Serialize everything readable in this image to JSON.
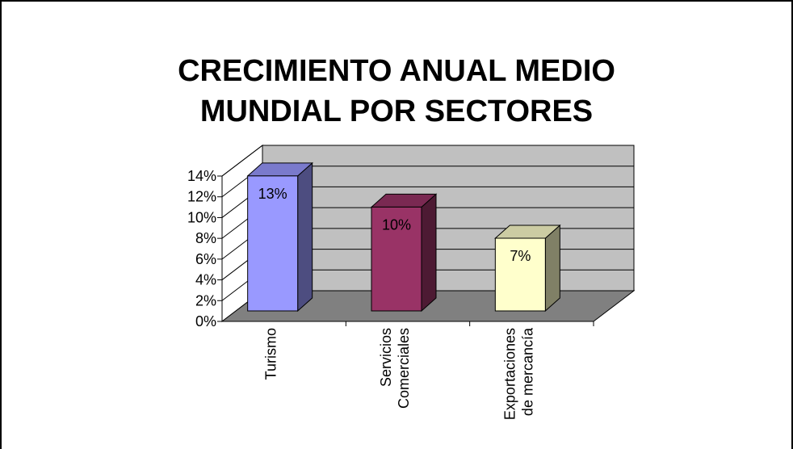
{
  "chart_data": {
    "type": "bar3d",
    "title": [
      "CRECIMIENTO ANUAL MEDIO",
      "MUNDIAL POR SECTORES"
    ],
    "categories": [
      [
        "Turismo"
      ],
      [
        "Servicios",
        "Comerciales"
      ],
      [
        "Exportaciones",
        "de mercancía"
      ]
    ],
    "values": [
      13,
      10,
      7
    ],
    "value_labels": [
      "13%",
      "10%",
      "7%"
    ],
    "colors": [
      "#9999ff",
      "#993366",
      "#ffffcc"
    ],
    "ylim": [
      0,
      14
    ],
    "yticks": [
      {
        "value": 0,
        "label": "0%"
      },
      {
        "value": 2,
        "label": "2%"
      },
      {
        "value": 4,
        "label": "4%"
      },
      {
        "value": 6,
        "label": "6%"
      },
      {
        "value": 8,
        "label": "8%"
      },
      {
        "value": 10,
        "label": "10%"
      },
      {
        "value": 12,
        "label": "12%"
      },
      {
        "value": 14,
        "label": "14%"
      }
    ],
    "grid": true
  }
}
